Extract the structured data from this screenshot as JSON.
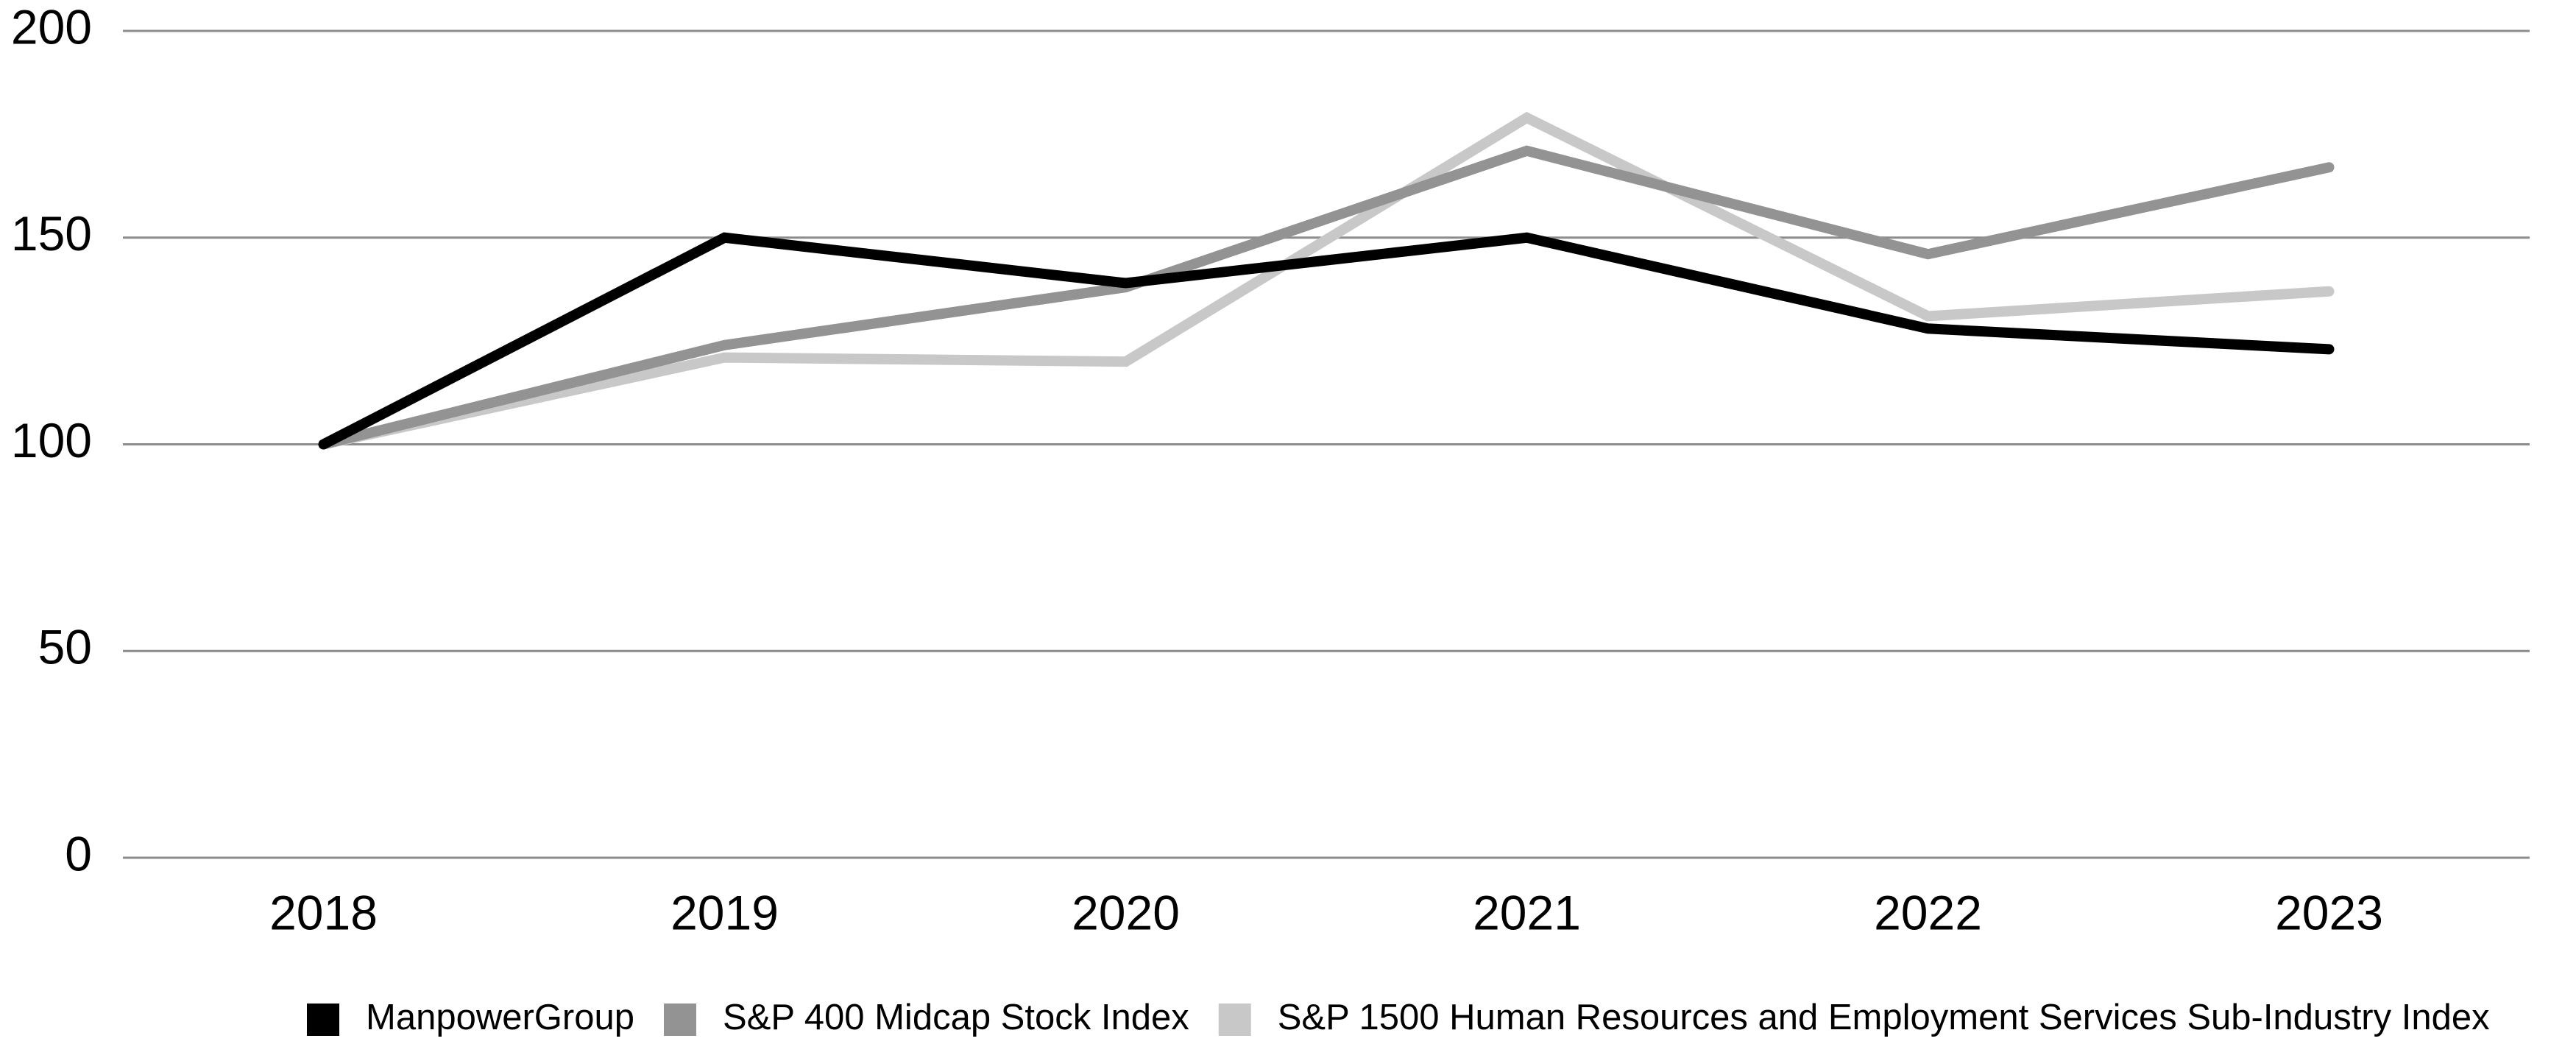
{
  "chart_data": {
    "type": "line",
    "categories": [
      "2018",
      "2019",
      "2020",
      "2021",
      "2022",
      "2023"
    ],
    "series": [
      {
        "name": "ManpowerGroup",
        "color": "#000000",
        "values": [
          100,
          150,
          139,
          150,
          128,
          123
        ]
      },
      {
        "name": "S&P 400 Midcap Stock Index",
        "color": "#939393",
        "values": [
          100,
          124,
          138,
          171,
          146,
          167
        ]
      },
      {
        "name": "S&P 1500 Human Resources and Employment Services Sub-Industry Index",
        "color": "#c8c8c8",
        "values": [
          100,
          121,
          120,
          179,
          131,
          137
        ]
      }
    ],
    "ylim": [
      0,
      200
    ],
    "yticks": [
      0,
      50,
      100,
      150,
      200
    ],
    "grid": true,
    "legend": "bottom"
  }
}
